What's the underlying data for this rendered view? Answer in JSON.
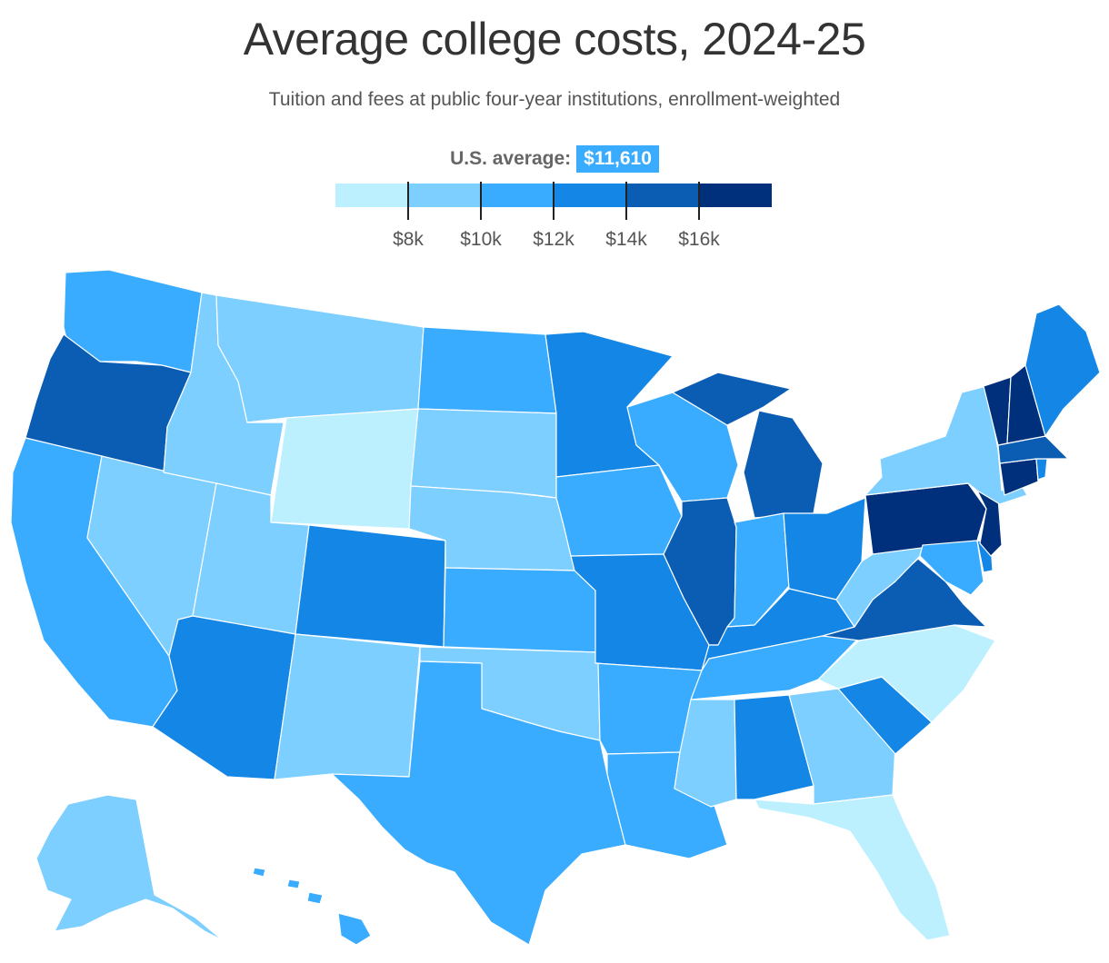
{
  "title": "Average college costs, 2024-25",
  "subtitle": "Tuition and fees at public four-year institutions, enrollment-weighted",
  "us_average": {
    "label": "U.S. average:",
    "value": "$11,610"
  },
  "legend": {
    "ticks": [
      "$8k",
      "$10k",
      "$12k",
      "$14k",
      "$16k"
    ],
    "bins": [
      {
        "range": "< $8k",
        "color": "#bdf0ff"
      },
      {
        "range": "$8k–$10k",
        "color": "#7dcfff"
      },
      {
        "range": "$10k–$12k",
        "color": "#39acff"
      },
      {
        "range": "$12k–$14k",
        "color": "#1386e6"
      },
      {
        "range": "$14k–$16k",
        "color": "#0b5db4"
      },
      {
        "range": "> $16k",
        "color": "#00307c"
      }
    ]
  },
  "states": {
    "WA": 2,
    "OR": 4,
    "CA": 2,
    "NV": 1,
    "ID": 1,
    "MT": 1,
    "WY": 0,
    "UT": 1,
    "AZ": 3,
    "CO": 3,
    "NM": 1,
    "ND": 2,
    "SD": 1,
    "NE": 1,
    "KS": 2,
    "OK": 1,
    "TX": 2,
    "MN": 3,
    "IA": 2,
    "MO": 3,
    "AR": 2,
    "LA": 2,
    "WI": 2,
    "IL": 4,
    "MI": 4,
    "IN": 2,
    "OH": 3,
    "KY": 3,
    "TN": 2,
    "MS": 1,
    "AL": 3,
    "GA": 1,
    "FL": 0,
    "SC": 3,
    "NC": 0,
    "VA": 4,
    "WV": 1,
    "MD": 2,
    "DE": 3,
    "PA": 5,
    "NJ": 5,
    "NY": 1,
    "CT": 5,
    "RI": 3,
    "MA": 4,
    "VT": 5,
    "NH": 5,
    "ME": 3,
    "AK": 1,
    "HI": 2
  }
}
